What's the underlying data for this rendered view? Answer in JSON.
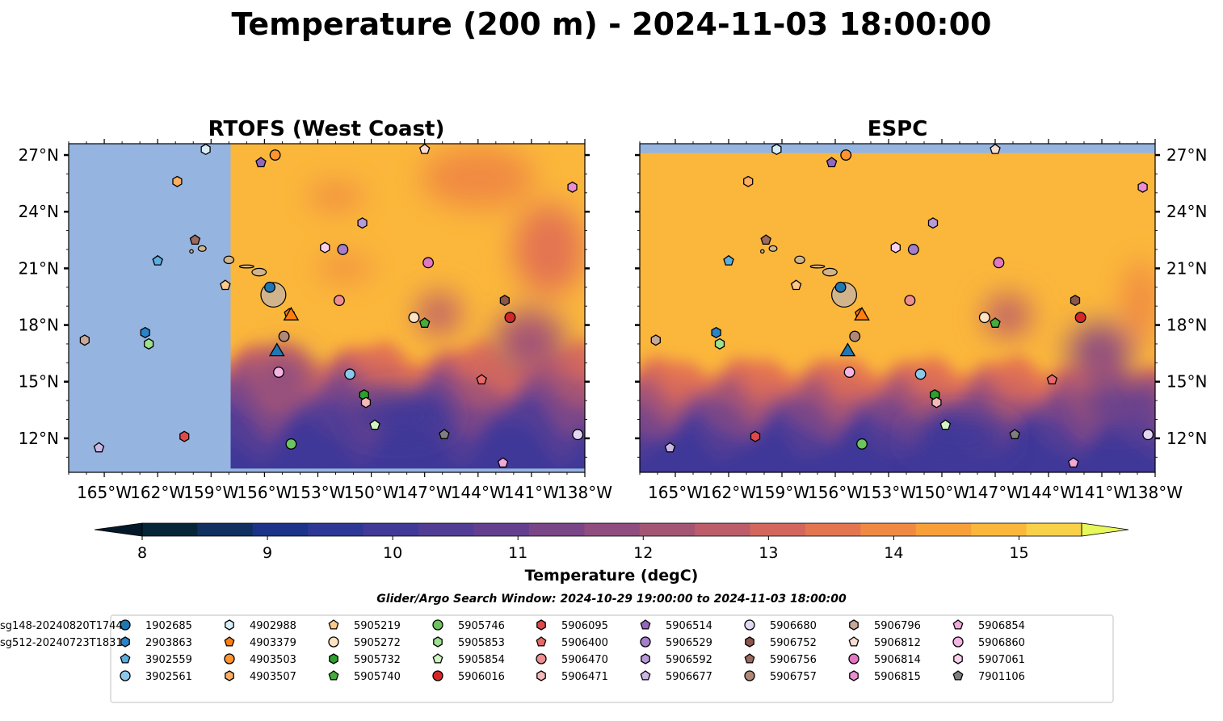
{
  "title": "Temperature (200 m) - 2024-11-03 18:00:00",
  "panels": [
    {
      "title": "RTOFS (West Coast)",
      "model": "rtofs"
    },
    {
      "title": "ESPC",
      "model": "espc"
    }
  ],
  "map_extent": {
    "lon": [
      -167,
      -138
    ],
    "lat": [
      10.2,
      27.6
    ]
  },
  "lon_ticks": [
    {
      "value": -165,
      "label": "165°W"
    },
    {
      "value": -162,
      "label": "162°W"
    },
    {
      "value": -159,
      "label": "159°W"
    },
    {
      "value": -156,
      "label": "156°W"
    },
    {
      "value": -153,
      "label": "153°W"
    },
    {
      "value": -150,
      "label": "150°W"
    },
    {
      "value": -147,
      "label": "147°W"
    },
    {
      "value": -144,
      "label": "144°W"
    },
    {
      "value": -141,
      "label": "141°W"
    },
    {
      "value": -138,
      "label": "138°W"
    }
  ],
  "lat_ticks": [
    {
      "value": 27,
      "label": "27°N"
    },
    {
      "value": 24,
      "label": "24°N"
    },
    {
      "value": 21,
      "label": "21°N"
    },
    {
      "value": 18,
      "label": "18°N"
    },
    {
      "value": 15,
      "label": "15°N"
    },
    {
      "value": 12,
      "label": "12°N"
    }
  ],
  "rtofs_west_limit_lon": -157.9,
  "colors": {
    "land": "#d2b48c",
    "mask": "#95b4e0",
    "island_edge": "#000000"
  },
  "colorbar": {
    "label": "Temperature (degC)",
    "min": 8,
    "max": 15.5,
    "step": 0.5,
    "ticks": [
      8,
      9,
      10,
      11,
      12,
      13,
      14,
      15
    ],
    "under_color": "#03192a",
    "over_color": "#e8f75a",
    "colors": [
      "#062638",
      "#10305f",
      "#1c3389",
      "#2e3795",
      "#413998",
      "#523d95",
      "#643f8f",
      "#7a4688",
      "#8f4d80",
      "#a55574",
      "#bd5d69",
      "#d3675d",
      "#e47551",
      "#f08a42",
      "#f7a03a",
      "#fbb73b",
      "#f8d148"
    ]
  },
  "search_window": "Glider/Argo Search Window: 2024-10-29 19:00:00 to 2024-11-03 18:00:00",
  "islands": [
    {
      "name": "Hawaii",
      "lon": -155.5,
      "lat": 19.6,
      "rx": 0.7,
      "ry": 0.65
    },
    {
      "name": "Maui",
      "lon": -156.3,
      "lat": 20.8,
      "rx": 0.4,
      "ry": 0.2
    },
    {
      "name": "Molokai",
      "lon": -157.0,
      "lat": 21.1,
      "rx": 0.4,
      "ry": 0.08
    },
    {
      "name": "Oahu",
      "lon": -158.0,
      "lat": 21.45,
      "rx": 0.28,
      "ry": 0.2
    },
    {
      "name": "Kauai",
      "lon": -159.5,
      "lat": 22.05,
      "rx": 0.22,
      "ry": 0.15
    },
    {
      "name": "Niihau",
      "lon": -160.1,
      "lat": 21.9,
      "rx": 0.1,
      "ry": 0.09
    }
  ],
  "floats": [
    {
      "id": "1902685",
      "marker": "circle",
      "color": "#1f77b4",
      "lon": -155.7,
      "lat": 20.0
    },
    {
      "id": "2903863",
      "marker": "hexagon",
      "color": "#2b83c8",
      "lon": -162.7,
      "lat": 17.6
    },
    {
      "id": "3902559",
      "marker": "pentagon",
      "color": "#5aaee0",
      "lon": -162.0,
      "lat": 21.4
    },
    {
      "id": "3902561",
      "marker": "circle",
      "color": "#8cc8ec",
      "lon": -151.2,
      "lat": 15.4
    },
    {
      "id": "4902988",
      "marker": "hexagon",
      "color": "#d8eefa",
      "lon": -159.3,
      "lat": 27.3
    },
    {
      "id": "4903379",
      "marker": "pentagon",
      "color": "#ff7f0e",
      "lon": -154.6,
      "lat": 18.6
    },
    {
      "id": "4903503",
      "marker": "circle",
      "color": "#ff9430",
      "lon": -155.4,
      "lat": 27.0
    },
    {
      "id": "4903507",
      "marker": "hexagon",
      "color": "#ffae62",
      "lon": -160.9,
      "lat": 25.6
    },
    {
      "id": "5905219",
      "marker": "pentagon",
      "color": "#ffc888",
      "lon": -158.2,
      "lat": 20.1
    },
    {
      "id": "5905272",
      "marker": "circle",
      "color": "#ffe2c2",
      "lon": -147.6,
      "lat": 18.4
    },
    {
      "id": "5905732",
      "marker": "hexagon",
      "color": "#2ca02c",
      "lon": -150.4,
      "lat": 14.3
    },
    {
      "id": "5905740",
      "marker": "pentagon",
      "color": "#44ad3c",
      "lon": -147.0,
      "lat": 18.1
    },
    {
      "id": "5905746",
      "marker": "circle",
      "color": "#6cc45e",
      "lon": -154.5,
      "lat": 11.7
    },
    {
      "id": "5905853",
      "marker": "hexagon",
      "color": "#9ee08c",
      "lon": -162.5,
      "lat": 17.0
    },
    {
      "id": "5905854",
      "marker": "pentagon",
      "color": "#d0f5c2",
      "lon": -149.8,
      "lat": 12.7
    },
    {
      "id": "5906016",
      "marker": "circle",
      "color": "#d62728",
      "lon": -142.2,
      "lat": 18.4
    },
    {
      "id": "5906095",
      "marker": "hexagon",
      "color": "#de4a4a",
      "lon": -160.5,
      "lat": 12.1
    },
    {
      "id": "5906400",
      "marker": "pentagon",
      "color": "#e66a6a",
      "lon": -143.8,
      "lat": 15.1
    },
    {
      "id": "5906470",
      "marker": "circle",
      "color": "#ee8e8e",
      "lon": -151.8,
      "lat": 19.3
    },
    {
      "id": "5906471",
      "marker": "hexagon",
      "color": "#f6b8b8",
      "lon": -150.3,
      "lat": 13.9
    },
    {
      "id": "5906514",
      "marker": "pentagon",
      "color": "#9467bd",
      "lon": -156.2,
      "lat": 26.6
    },
    {
      "id": "5906529",
      "marker": "circle",
      "color": "#a47ecb",
      "lon": -151.6,
      "lat": 22.0
    },
    {
      "id": "5906592",
      "marker": "hexagon",
      "color": "#b89ad8",
      "lon": -150.5,
      "lat": 23.4
    },
    {
      "id": "5906677",
      "marker": "pentagon",
      "color": "#ccb8e6",
      "lon": -165.3,
      "lat": 11.5
    },
    {
      "id": "5906680",
      "marker": "circle",
      "color": "#e2d8f4",
      "lon": -138.4,
      "lat": 12.2
    },
    {
      "id": "5906752",
      "marker": "hexagon",
      "color": "#8c564b",
      "lon": -142.5,
      "lat": 19.3
    },
    {
      "id": "5906756",
      "marker": "pentagon",
      "color": "#9c6a5e",
      "lon": -159.9,
      "lat": 22.5
    },
    {
      "id": "5906757",
      "marker": "circle",
      "color": "#b08878",
      "lon": -154.9,
      "lat": 17.4
    },
    {
      "id": "5906796",
      "marker": "hexagon",
      "color": "#c8a89a",
      "lon": -166.1,
      "lat": 17.2
    },
    {
      "id": "5906812",
      "marker": "pentagon",
      "color": "#f8ddd2",
      "lon": -147.0,
      "lat": 27.3
    },
    {
      "id": "5906814",
      "marker": "circle",
      "color": "#e377c2",
      "lon": -146.8,
      "lat": 21.3
    },
    {
      "id": "5906815",
      "marker": "hexagon",
      "color": "#ea8ed0",
      "lon": -138.7,
      "lat": 25.3
    },
    {
      "id": "5906854",
      "marker": "pentagon",
      "color": "#f2a8dc",
      "lon": -142.6,
      "lat": 10.7
    },
    {
      "id": "5906860",
      "marker": "circle",
      "color": "#f4b4e4",
      "lon": -155.2,
      "lat": 15.5
    },
    {
      "id": "5907061",
      "marker": "hexagon",
      "color": "#fcd0ec",
      "lon": -152.6,
      "lat": 22.1
    },
    {
      "id": "7901106",
      "marker": "pentagon",
      "color": "#7f7f7f",
      "lon": -145.9,
      "lat": 12.2
    }
  ],
  "gliders": [
    {
      "id": "sg148-20240820T1744",
      "color": "#1f77b4",
      "lon": -155.3,
      "lat": 16.5
    },
    {
      "id": "sg512-20240723T1831",
      "color": "#ff7f0e",
      "lon": -154.5,
      "lat": 18.4
    }
  ]
}
